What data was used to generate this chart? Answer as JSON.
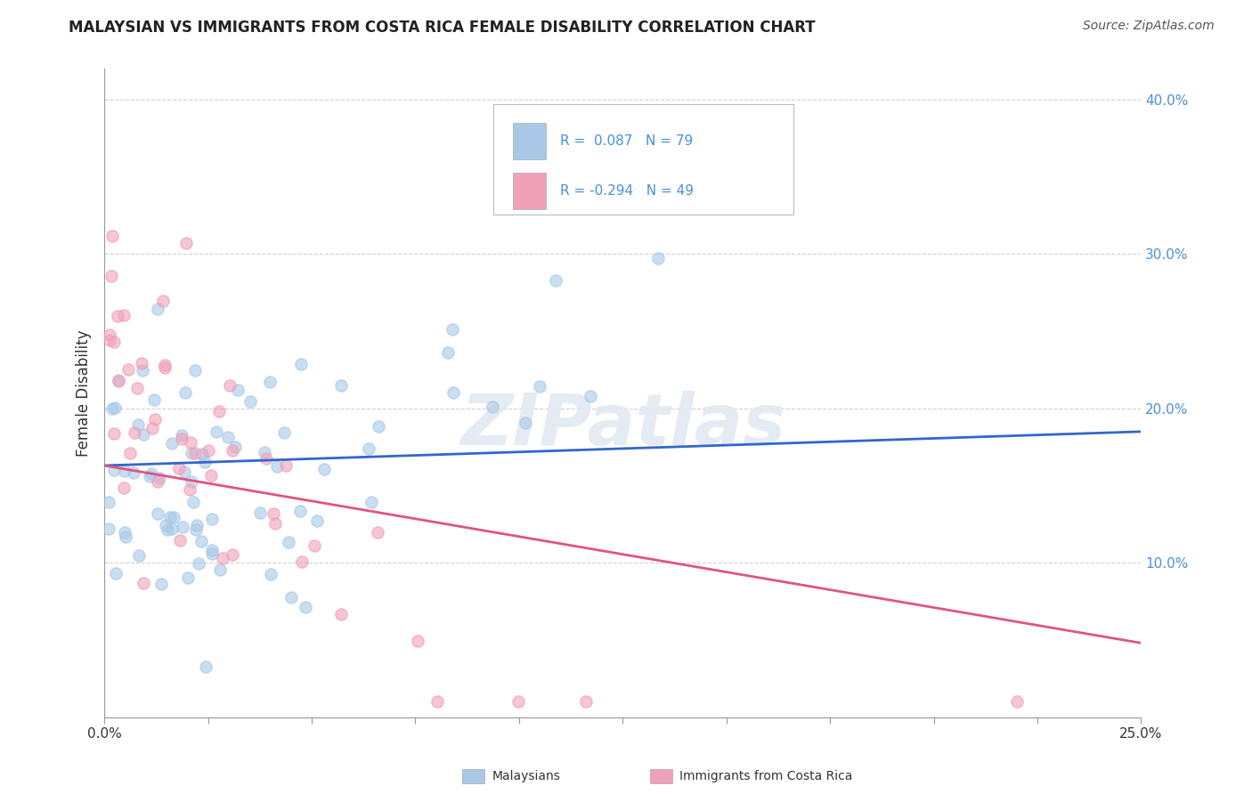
{
  "title": "MALAYSIAN VS IMMIGRANTS FROM COSTA RICA FEMALE DISABILITY CORRELATION CHART",
  "source": "Source: ZipAtlas.com",
  "ylabel": "Female Disability",
  "xlim": [
    0.0,
    0.25
  ],
  "ylim": [
    0.0,
    0.42
  ],
  "xticks": [
    0.0,
    0.025,
    0.05,
    0.075,
    0.1,
    0.125,
    0.15,
    0.175,
    0.2,
    0.225,
    0.25
  ],
  "yticks": [
    0.0,
    0.1,
    0.2,
    0.3,
    0.4
  ],
  "series1_color": "#a8c8e8",
  "series2_color": "#f0a0b8",
  "line1_color": "#3366cc",
  "line2_color": "#e05580",
  "R1": 0.087,
  "N1": 79,
  "R2": -0.294,
  "N2": 49,
  "watermark": "ZIPatlas",
  "legend_label1": "Malaysians",
  "legend_label2": "Immigrants from Costa Rica",
  "background_color": "#ffffff",
  "grid_color": "#cccccc",
  "title_fontsize": 12,
  "source_fontsize": 10,
  "ylabel_fontsize": 12,
  "tick_fontsize": 11,
  "legend_fontsize": 11,
  "scatter_size": 90,
  "scatter_alpha": 0.6,
  "scatter_linewidth": 1.2,
  "line1_y_start": 0.163,
  "line1_y_end": 0.185,
  "line2_y_start": 0.163,
  "line2_y_end": 0.048
}
